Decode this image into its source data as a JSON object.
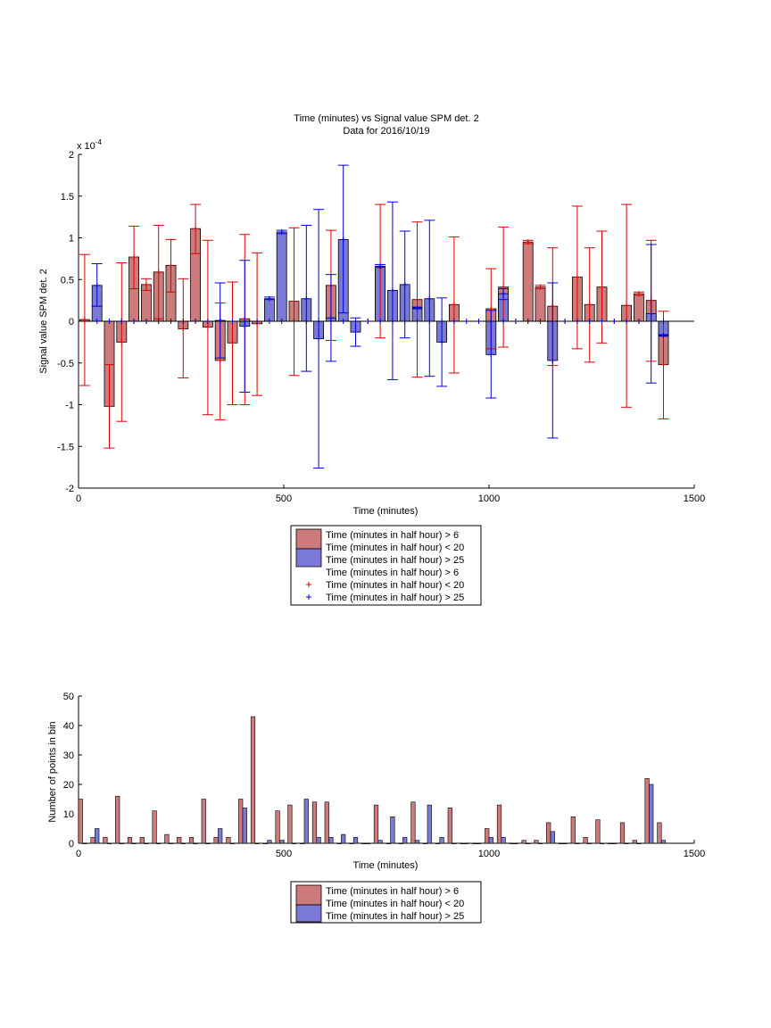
{
  "chart_data": [
    {
      "type": "bar",
      "title": "Time (minutes) vs Signal value SPM det. 2",
      "subtitle": "Data for 2016/10/19",
      "xlabel": "Time (minutes)",
      "ylabel": "Signal value SPM det. 2",
      "y_multiplier_label": "x 10",
      "y_multiplier_exponent": "-4",
      "xlim": [
        0,
        1500
      ],
      "ylim": [
        -2,
        2
      ],
      "xticks": [
        0,
        500,
        1000,
        1500
      ],
      "yticks": [
        -2,
        -1.5,
        -1,
        -0.5,
        0,
        0.5,
        1,
        1.5,
        2
      ],
      "grid": false,
      "legend_position": "bottom-center",
      "legend": [
        "Time (minutes in half hour) > 6",
        "Time (minutes in half hour) < 20",
        "Time (minutes in half hour) > 25",
        "Time (minutes in half hour) > 6",
        "Time (minutes in half hour) < 20",
        "Time (minutes in half hour) > 25"
      ],
      "colors": {
        "red_bar": "#cc7a7a",
        "blue_bar": "#7a7ad6",
        "red_err": "#dd0000",
        "blue_err": "#0000dd"
      },
      "bar_width": 24,
      "series": [
        {
          "color": "red",
          "bars": [
            {
              "x": 15,
              "y": 0.02,
              "lo": -0.77,
              "hi": 0.8
            },
            {
              "x": 75,
              "y": -1.02,
              "lo": -1.52,
              "hi": -0.52
            },
            {
              "x": 105,
              "y": -0.25,
              "lo": -1.2,
              "hi": 0.7
            },
            {
              "x": 135,
              "y": 0.77,
              "lo": 0.39,
              "hi": 1.14
            },
            {
              "x": 165,
              "y": 0.44,
              "lo": 0.37,
              "hi": 0.51
            },
            {
              "x": 195,
              "y": 0.59,
              "lo": 0.03,
              "hi": 1.15
            },
            {
              "x": 225,
              "y": 0.67,
              "lo": 0.35,
              "hi": 0.98
            },
            {
              "x": 255,
              "y": -0.09,
              "lo": -0.68,
              "hi": 0.51
            },
            {
              "x": 285,
              "y": 1.11,
              "lo": 0.81,
              "hi": 1.4
            },
            {
              "x": 315,
              "y": -0.07,
              "lo": -1.12,
              "hi": 0.97
            },
            {
              "x": 345,
              "y": -0.47,
              "lo": -1.18,
              "hi": 0.22
            },
            {
              "x": 375,
              "y": -0.26,
              "lo": -1.0,
              "hi": 0.47
            },
            {
              "x": 405,
              "y": 0.03,
              "lo": -1.0,
              "hi": 1.04
            },
            {
              "x": 435,
              "y": -0.03,
              "lo": -0.89,
              "hi": 0.82
            },
            {
              "x": 525,
              "y": 0.24,
              "lo": -0.65,
              "hi": 1.12
            },
            {
              "x": 615,
              "y": 0.43,
              "lo": -0.23,
              "hi": 1.09
            },
            {
              "x": 735,
              "y": 0.64,
              "lo": -0.2,
              "hi": 1.4
            },
            {
              "x": 825,
              "y": 0.26,
              "lo": -0.67,
              "hi": 1.19
            },
            {
              "x": 915,
              "y": 0.2,
              "lo": -0.62,
              "hi": 1.01
            },
            {
              "x": 1005,
              "y": 0.15,
              "lo": -0.33,
              "hi": 0.63
            },
            {
              "x": 1035,
              "y": 0.41,
              "lo": -0.31,
              "hi": 1.13
            },
            {
              "x": 1095,
              "y": 0.95,
              "lo": 0.93,
              "hi": 0.97
            },
            {
              "x": 1125,
              "y": 0.41,
              "lo": 0.39,
              "hi": 0.43
            },
            {
              "x": 1155,
              "y": 0.18,
              "lo": -0.53,
              "hi": 0.88
            },
            {
              "x": 1215,
              "y": 0.53,
              "lo": -0.33,
              "hi": 1.38
            },
            {
              "x": 1245,
              "y": 0.2,
              "lo": -0.49,
              "hi": 0.88
            },
            {
              "x": 1275,
              "y": 0.41,
              "lo": -0.26,
              "hi": 1.08
            },
            {
              "x": 1335,
              "y": 0.19,
              "lo": -1.03,
              "hi": 1.4
            },
            {
              "x": 1365,
              "y": 0.33,
              "lo": 0.31,
              "hi": 0.35
            },
            {
              "x": 1395,
              "y": 0.25,
              "lo": -0.48,
              "hi": 0.97
            },
            {
              "x": 1425,
              "y": -0.52,
              "lo": -1.17,
              "hi": 0.12
            }
          ]
        },
        {
          "color": "blue",
          "bars": [
            {
              "x": 45,
              "y": 0.43,
              "lo": 0.18,
              "hi": 0.69
            },
            {
              "x": 345,
              "y": 0.01,
              "lo": -0.44,
              "hi": 0.46
            },
            {
              "x": 405,
              "y": -0.06,
              "lo": -0.85,
              "hi": 0.73
            },
            {
              "x": 465,
              "y": 0.27,
              "lo": 0.26,
              "hi": 0.29
            },
            {
              "x": 495,
              "y": 1.07,
              "lo": 1.05,
              "hi": 1.09
            },
            {
              "x": 555,
              "y": 0.27,
              "lo": -0.6,
              "hi": 1.15
            },
            {
              "x": 585,
              "y": -0.21,
              "lo": -1.76,
              "hi": 1.34
            },
            {
              "x": 615,
              "y": 0.04,
              "lo": -0.48,
              "hi": 0.56
            },
            {
              "x": 645,
              "y": 0.98,
              "lo": 0.1,
              "hi": 1.87
            },
            {
              "x": 675,
              "y": -0.13,
              "lo": -0.3,
              "hi": 0.04
            },
            {
              "x": 735,
              "y": 0.66,
              "lo": 0.65,
              "hi": 0.68
            },
            {
              "x": 765,
              "y": 0.37,
              "lo": -0.7,
              "hi": 1.43
            },
            {
              "x": 795,
              "y": 0.44,
              "lo": -0.2,
              "hi": 1.08
            },
            {
              "x": 825,
              "y": 0.16,
              "lo": 0.15,
              "hi": 0.17
            },
            {
              "x": 855,
              "y": 0.27,
              "lo": -0.66,
              "hi": 1.21
            },
            {
              "x": 885,
              "y": -0.25,
              "lo": -0.78,
              "hi": 0.28
            },
            {
              "x": 1005,
              "y": -0.4,
              "lo": -0.92,
              "hi": 0.13
            },
            {
              "x": 1035,
              "y": 0.33,
              "lo": 0.26,
              "hi": 0.39
            },
            {
              "x": 1155,
              "y": -0.47,
              "lo": -1.4,
              "hi": 0.46
            },
            {
              "x": 1395,
              "y": 0.09,
              "lo": -0.74,
              "hi": 0.92
            },
            {
              "x": 1425,
              "y": -0.17,
              "lo": -0.18,
              "hi": -0.16
            }
          ]
        }
      ],
      "zero_markers_red_x": [
        15,
        105,
        135,
        165,
        195,
        225,
        255,
        285,
        315,
        375,
        435,
        525,
        675,
        705,
        825,
        915,
        975,
        1005,
        1065,
        1095,
        1125,
        1155,
        1185,
        1215,
        1245,
        1275,
        1305,
        1335,
        1365,
        1425
      ],
      "zero_markers_blue_x": [
        45,
        75,
        105,
        135,
        165,
        195,
        225,
        255,
        285,
        315,
        345,
        375,
        405,
        435,
        465,
        495,
        525,
        555,
        585,
        615,
        645,
        675,
        705,
        735,
        765,
        795,
        825,
        855,
        885,
        915,
        945,
        975,
        1005,
        1035,
        1065,
        1095,
        1125,
        1155,
        1185,
        1215,
        1245,
        1275,
        1305,
        1335,
        1365,
        1395,
        1425
      ]
    },
    {
      "type": "bar",
      "xlabel": "Time (minutes)",
      "ylabel": "Number of points in bin",
      "xlim": [
        0,
        1500
      ],
      "ylim": [
        0,
        50
      ],
      "xticks": [
        0,
        500,
        1000,
        1500
      ],
      "yticks": [
        0,
        10,
        20,
        30,
        40,
        50
      ],
      "grid": false,
      "legend_position": "bottom-center",
      "legend": [
        "Time (minutes in half hour) > 6",
        "Time (minutes in half hour) < 20",
        "Time (minutes in half hour) > 25"
      ],
      "colors": {
        "red_bar": "#cc7a7a",
        "blue_bar": "#7a7ad6"
      },
      "bar_width": 10,
      "series": [
        {
          "color": "red",
          "points": [
            [
              5,
              15
            ],
            [
              35,
              2
            ],
            [
              65,
              2
            ],
            [
              95,
              16
            ],
            [
              125,
              2
            ],
            [
              155,
              2
            ],
            [
              185,
              11
            ],
            [
              215,
              3
            ],
            [
              245,
              2
            ],
            [
              275,
              2
            ],
            [
              305,
              15
            ],
            [
              335,
              2
            ],
            [
              365,
              2
            ],
            [
              395,
              15
            ],
            [
              425,
              43
            ],
            [
              455,
              0
            ],
            [
              485,
              11
            ],
            [
              515,
              13
            ],
            [
              545,
              0
            ],
            [
              575,
              14
            ],
            [
              605,
              14
            ],
            [
              635,
              0
            ],
            [
              665,
              0
            ],
            [
              695,
              0
            ],
            [
              725,
              13
            ],
            [
              755,
              0
            ],
            [
              785,
              0
            ],
            [
              815,
              14
            ],
            [
              845,
              0
            ],
            [
              875,
              0
            ],
            [
              905,
              12
            ],
            [
              935,
              0
            ],
            [
              965,
              0
            ],
            [
              995,
              5
            ],
            [
              1025,
              13
            ],
            [
              1055,
              0
            ],
            [
              1085,
              1
            ],
            [
              1115,
              1
            ],
            [
              1145,
              7
            ],
            [
              1175,
              0
            ],
            [
              1205,
              9
            ],
            [
              1235,
              2
            ],
            [
              1265,
              8
            ],
            [
              1295,
              0
            ],
            [
              1325,
              7
            ],
            [
              1355,
              1
            ],
            [
              1385,
              22
            ],
            [
              1415,
              7
            ]
          ]
        },
        {
          "color": "blue",
          "points": [
            [
              15,
              0
            ],
            [
              45,
              5
            ],
            [
              75,
              0
            ],
            [
              105,
              0
            ],
            [
              135,
              0
            ],
            [
              165,
              0
            ],
            [
              195,
              0
            ],
            [
              225,
              0
            ],
            [
              255,
              0
            ],
            [
              285,
              0
            ],
            [
              315,
              0
            ],
            [
              345,
              5
            ],
            [
              375,
              0
            ],
            [
              405,
              12
            ],
            [
              435,
              0
            ],
            [
              465,
              1
            ],
            [
              495,
              1
            ],
            [
              525,
              0
            ],
            [
              555,
              15
            ],
            [
              585,
              2
            ],
            [
              615,
              2
            ],
            [
              645,
              3
            ],
            [
              675,
              2
            ],
            [
              705,
              0
            ],
            [
              735,
              1
            ],
            [
              765,
              9
            ],
            [
              795,
              2
            ],
            [
              825,
              1
            ],
            [
              855,
              13
            ],
            [
              885,
              2
            ],
            [
              915,
              0
            ],
            [
              945,
              0
            ],
            [
              975,
              0
            ],
            [
              1005,
              2
            ],
            [
              1035,
              2
            ],
            [
              1065,
              0
            ],
            [
              1095,
              0
            ],
            [
              1125,
              0
            ],
            [
              1155,
              4
            ],
            [
              1185,
              0
            ],
            [
              1215,
              0
            ],
            [
              1245,
              0
            ],
            [
              1275,
              0
            ],
            [
              1305,
              0
            ],
            [
              1335,
              0
            ],
            [
              1365,
              0
            ],
            [
              1395,
              20
            ],
            [
              1425,
              1
            ]
          ]
        }
      ]
    }
  ]
}
